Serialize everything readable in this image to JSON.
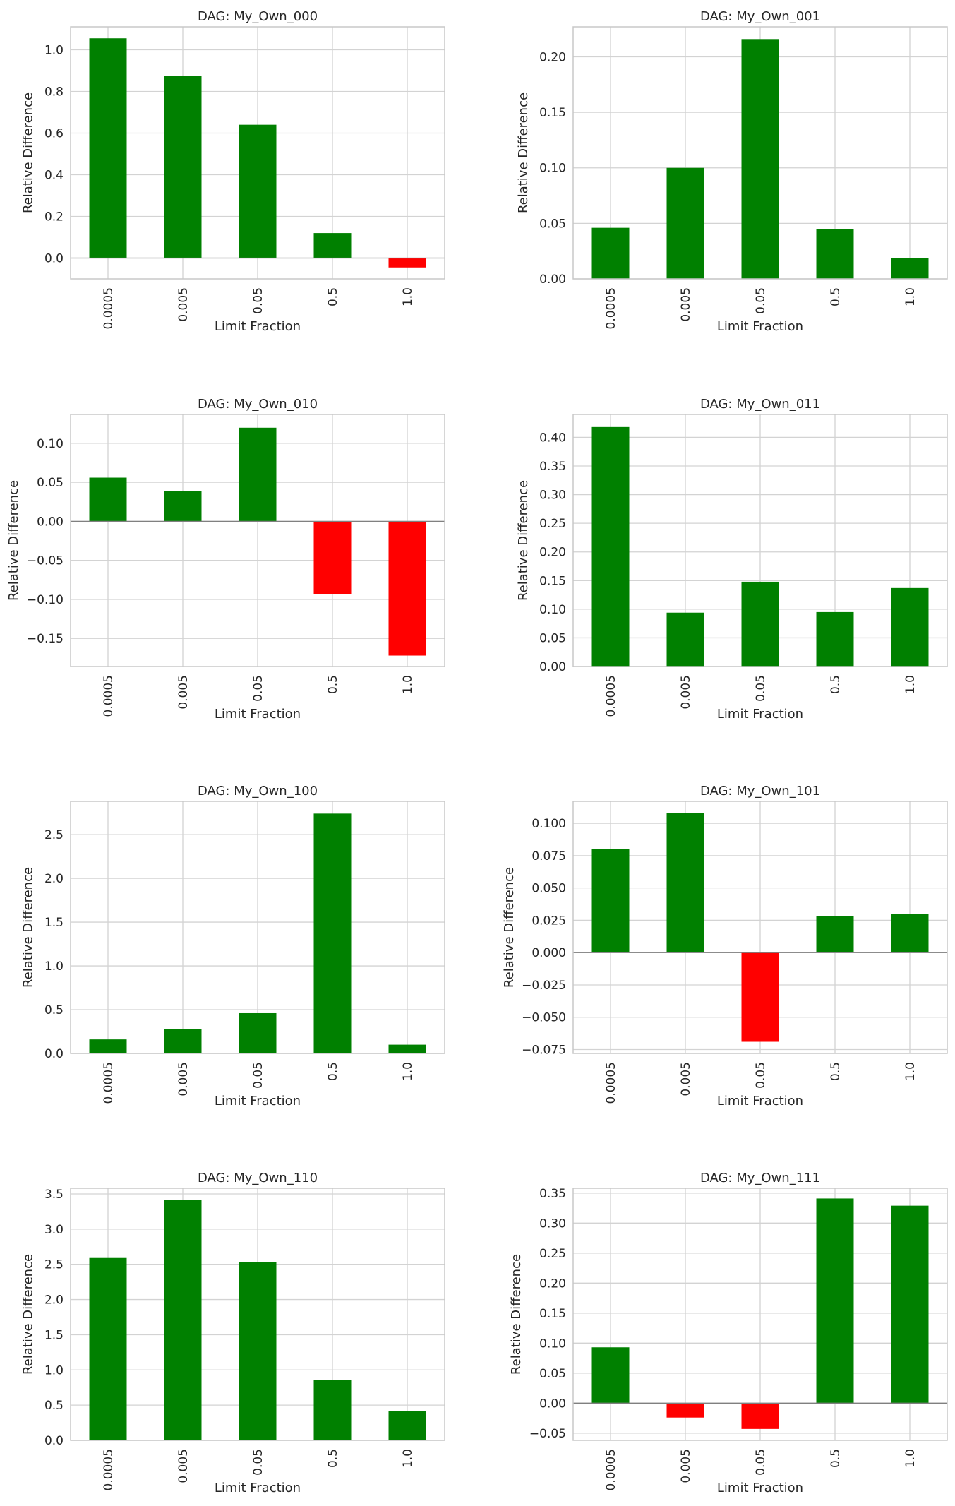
{
  "colors": {
    "positive": "#008000",
    "negative": "#ff0000",
    "grid": "#d3d3d3",
    "frame": "#c8c8c8",
    "zeroline": "#808080",
    "text": "#262626"
  },
  "chart_data": [
    {
      "type": "bar",
      "title": "DAG: My_Own_000",
      "xlabel": "Limit Fraction",
      "ylabel": "Relative Difference",
      "categories": [
        "0.0005",
        "0.005",
        "0.05",
        "0.5",
        "1.0"
      ],
      "values": [
        1.055,
        0.875,
        0.64,
        0.12,
        -0.045
      ],
      "ylim": [
        -0.1,
        1.11
      ],
      "yticks": [
        0.0,
        0.2,
        0.4,
        0.6,
        0.8,
        1.0
      ],
      "ytick_labels": [
        "0.0",
        "0.2",
        "0.4",
        "0.6",
        "0.8",
        "1.0"
      ],
      "grid": true,
      "zero_line": true
    },
    {
      "type": "bar",
      "title": "DAG: My_Own_001",
      "xlabel": "Limit Fraction",
      "ylabel": "Relative Difference",
      "categories": [
        "0.0005",
        "0.005",
        "0.05",
        "0.5",
        "1.0"
      ],
      "values": [
        0.046,
        0.1,
        0.216,
        0.045,
        0.019
      ],
      "ylim": [
        0,
        0.227
      ],
      "yticks": [
        0.0,
        0.05,
        0.1,
        0.15,
        0.2
      ],
      "ytick_labels": [
        "0.00",
        "0.05",
        "0.10",
        "0.15",
        "0.20"
      ],
      "grid": true,
      "zero_line": false
    },
    {
      "type": "bar",
      "title": "DAG: My_Own_010",
      "xlabel": "Limit Fraction",
      "ylabel": "Relative Difference",
      "categories": [
        "0.0005",
        "0.005",
        "0.05",
        "0.5",
        "1.0"
      ],
      "values": [
        0.056,
        0.039,
        0.12,
        -0.093,
        -0.172
      ],
      "ylim": [
        -0.186,
        0.137
      ],
      "yticks": [
        -0.15,
        -0.1,
        -0.05,
        0.0,
        0.05,
        0.1
      ],
      "ytick_labels": [
        "−0.15",
        "−0.10",
        "−0.05",
        "0.00",
        "0.05",
        "0.10"
      ],
      "grid": true,
      "zero_line": true
    },
    {
      "type": "bar",
      "title": "DAG: My_Own_011",
      "xlabel": "Limit Fraction",
      "ylabel": "Relative Difference",
      "categories": [
        "0.0005",
        "0.005",
        "0.05",
        "0.5",
        "1.0"
      ],
      "values": [
        0.418,
        0.094,
        0.148,
        0.095,
        0.137
      ],
      "ylim": [
        0,
        0.44
      ],
      "yticks": [
        0.0,
        0.05,
        0.1,
        0.15,
        0.2,
        0.25,
        0.3,
        0.35,
        0.4
      ],
      "ytick_labels": [
        "0.00",
        "0.05",
        "0.10",
        "0.15",
        "0.20",
        "0.25",
        "0.30",
        "0.35",
        "0.40"
      ],
      "grid": true,
      "zero_line": false
    },
    {
      "type": "bar",
      "title": "DAG: My_Own_100",
      "xlabel": "Limit Fraction",
      "ylabel": "Relative Difference",
      "categories": [
        "0.0005",
        "0.005",
        "0.05",
        "0.5",
        "1.0"
      ],
      "values": [
        0.16,
        0.28,
        0.46,
        2.74,
        0.1
      ],
      "ylim": [
        0,
        2.88
      ],
      "yticks": [
        0.0,
        0.5,
        1.0,
        1.5,
        2.0,
        2.5
      ],
      "ytick_labels": [
        "0.0",
        "0.5",
        "1.0",
        "1.5",
        "2.0",
        "2.5"
      ],
      "grid": true,
      "zero_line": false
    },
    {
      "type": "bar",
      "title": "DAG: My_Own_101",
      "xlabel": "Limit Fraction",
      "ylabel": "Relative Difference",
      "categories": [
        "0.0005",
        "0.005",
        "0.05",
        "0.5",
        "1.0"
      ],
      "values": [
        0.08,
        0.108,
        -0.069,
        0.028,
        0.03
      ],
      "ylim": [
        -0.078,
        0.117
      ],
      "yticks": [
        -0.075,
        -0.05,
        -0.025,
        0.0,
        0.025,
        0.05,
        0.075,
        0.1
      ],
      "ytick_labels": [
        "−0.075",
        "−0.050",
        "−0.025",
        "0.000",
        "0.025",
        "0.050",
        "0.075",
        "0.100"
      ],
      "grid": true,
      "zero_line": true
    },
    {
      "type": "bar",
      "title": "DAG: My_Own_110",
      "xlabel": "Limit Fraction",
      "ylabel": "Relative Difference",
      "categories": [
        "0.0005",
        "0.005",
        "0.05",
        "0.5",
        "1.0"
      ],
      "values": [
        2.59,
        3.41,
        2.53,
        0.86,
        0.42
      ],
      "ylim": [
        0,
        3.58
      ],
      "yticks": [
        0.0,
        0.5,
        1.0,
        1.5,
        2.0,
        2.5,
        3.0,
        3.5
      ],
      "ytick_labels": [
        "0.0",
        "0.5",
        "1.0",
        "1.5",
        "2.0",
        "2.5",
        "3.0",
        "3.5"
      ],
      "grid": true,
      "zero_line": false
    },
    {
      "type": "bar",
      "title": "DAG: My_Own_111",
      "xlabel": "Limit Fraction",
      "ylabel": "Relative Difference",
      "categories": [
        "0.0005",
        "0.005",
        "0.05",
        "0.5",
        "1.0"
      ],
      "values": [
        0.093,
        -0.024,
        -0.043,
        0.341,
        0.329
      ],
      "ylim": [
        -0.062,
        0.358
      ],
      "yticks": [
        -0.05,
        0.0,
        0.05,
        0.1,
        0.15,
        0.2,
        0.25,
        0.3,
        0.35
      ],
      "ytick_labels": [
        "−0.05",
        "0.00",
        "0.05",
        "0.10",
        "0.15",
        "0.20",
        "0.25",
        "0.30",
        "0.35"
      ],
      "grid": true,
      "zero_line": true
    }
  ]
}
